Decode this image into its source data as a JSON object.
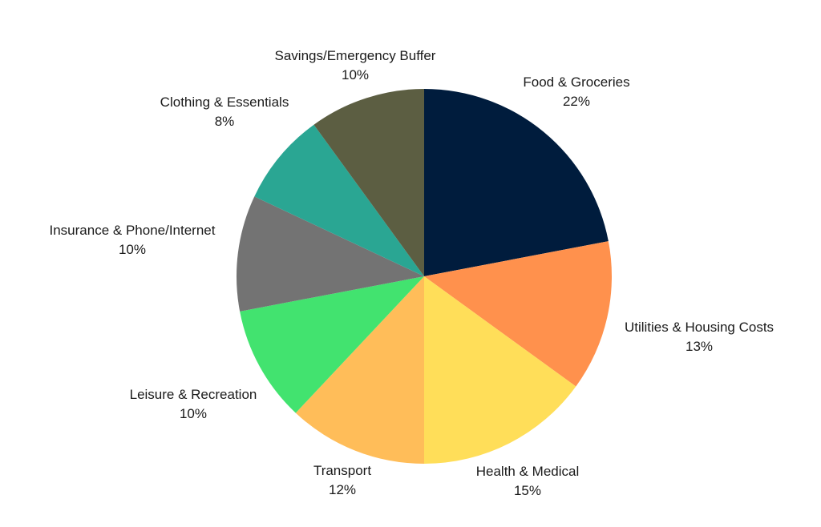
{
  "chart_data": {
    "type": "pie",
    "start": "top",
    "direction": "clockwise",
    "slices": [
      {
        "label": "Food & Groceries",
        "value": 22,
        "display": "22%",
        "color": "#001c3d"
      },
      {
        "label": "Utilities & Housing Costs",
        "value": 13,
        "display": "13%",
        "color": "#ff914d"
      },
      {
        "label": "Health & Medical",
        "value": 15,
        "display": "15%",
        "color": "#ffde59"
      },
      {
        "label": "Transport",
        "value": 12,
        "display": "12%",
        "color": "#ffbd59"
      },
      {
        "label": "Leisure & Recreation",
        "value": 10,
        "display": "10%",
        "color": "#42e36f"
      },
      {
        "label": "Insurance & Phone/Internet",
        "value": 10,
        "display": "10%",
        "color": "#737373"
      },
      {
        "label": "Clothing & Essentials",
        "value": 8,
        "display": "8%",
        "color": "#2aa693"
      },
      {
        "label": "Savings/Emergency Buffer",
        "value": 10,
        "display": "10%",
        "color": "#5c5e42"
      }
    ]
  }
}
